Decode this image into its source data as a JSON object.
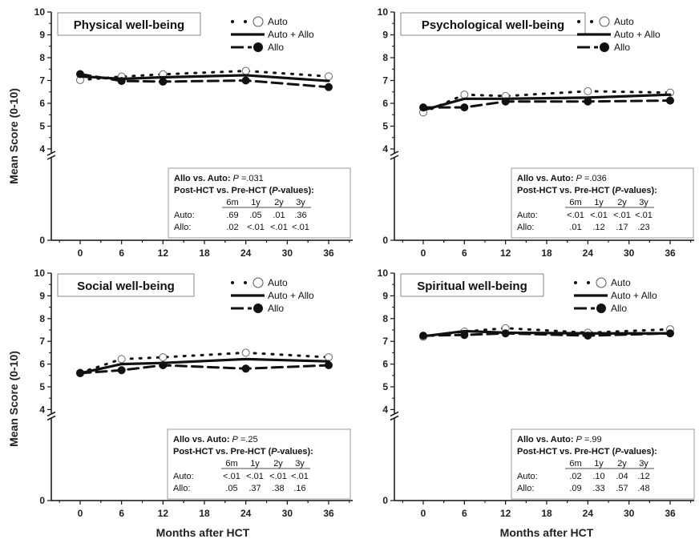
{
  "y_axis_label": "Mean Score (0-10)",
  "x_axis_label": "Months after HCT",
  "x_ticks": [
    "0",
    "6",
    "12",
    "18",
    "24",
    "30",
    "36"
  ],
  "y_ticks": [
    "0",
    "4",
    "5",
    "6",
    "7",
    "8",
    "9",
    "10"
  ],
  "legend": [
    "Auto",
    "Auto + Allo",
    "Allo"
  ],
  "colors": {
    "ink": "#111111",
    "open_marker": "#ffffff"
  },
  "chart_data": [
    {
      "type": "line",
      "title": "Physical well-being",
      "xlabel": "",
      "ylabel": "Mean Score (0-10)",
      "ylim": [
        0,
        10
      ],
      "xlim": [
        -6,
        39
      ],
      "axis_break_between": [
        0,
        4
      ],
      "series": [
        {
          "name": "Auto",
          "style": "dotted",
          "marker": "open-circle",
          "x": [
            0,
            6,
            12,
            24,
            36
          ],
          "y": [
            7.02,
            7.17,
            7.27,
            7.42,
            7.18
          ]
        },
        {
          "name": "Auto + Allo",
          "style": "solid",
          "marker": "none",
          "x": [
            0,
            6,
            12,
            24,
            36
          ],
          "y": [
            7.18,
            7.07,
            7.14,
            7.23,
            6.98
          ]
        },
        {
          "name": "Allo",
          "style": "dashed",
          "marker": "filled-circle",
          "x": [
            0,
            6,
            12,
            24,
            36
          ],
          "y": [
            7.28,
            6.98,
            6.95,
            7.0,
            6.71
          ]
        }
      ],
      "stats": {
        "comparison_label": "Allo vs. Auto:",
        "p_label": "P",
        "p_value": " =.031",
        "header": [
          "Post-HCT vs. Pre-HCT (",
          "P",
          "-values):"
        ],
        "columns": [
          "6m",
          "1y",
          "2y",
          "3y"
        ],
        "rows": [
          {
            "label": "Auto:",
            "values": [
              ".69",
              ".05",
              ".01",
              ".36"
            ]
          },
          {
            "label": "Allo:",
            "values": [
              ".02",
              "<.01",
              "<.01",
              "<.01"
            ]
          }
        ]
      }
    },
    {
      "type": "line",
      "title": "Psychological well-being",
      "xlabel": "",
      "ylabel": "",
      "ylim": [
        0,
        10
      ],
      "xlim": [
        -6,
        39
      ],
      "axis_break_between": [
        0,
        4
      ],
      "series": [
        {
          "name": "Auto",
          "style": "dotted",
          "marker": "open-circle",
          "x": [
            0,
            6,
            12,
            24,
            36
          ],
          "y": [
            5.6,
            6.38,
            6.32,
            6.53,
            6.47
          ]
        },
        {
          "name": "Auto + Allo",
          "style": "solid",
          "marker": "none",
          "x": [
            0,
            6,
            12,
            24,
            36
          ],
          "y": [
            5.7,
            6.2,
            6.2,
            6.25,
            6.38
          ]
        },
        {
          "name": "Allo",
          "style": "dashed",
          "marker": "filled-circle",
          "x": [
            0,
            6,
            12,
            24,
            36
          ],
          "y": [
            5.82,
            5.82,
            6.08,
            6.08,
            6.12
          ]
        }
      ],
      "stats": {
        "comparison_label": "Allo vs. Auto:",
        "p_label": "P",
        "p_value": " =.036",
        "header": [
          "Post-HCT vs. Pre-HCT (",
          "P",
          "-values):"
        ],
        "columns": [
          "6m",
          "1y",
          "2y",
          "3y"
        ],
        "rows": [
          {
            "label": "Auto:",
            "values": [
              "<.01",
              "<.01",
              "<.01",
              "<.01"
            ]
          },
          {
            "label": "Allo:",
            "values": [
              ".01",
              ".12",
              ".17",
              ".23"
            ]
          }
        ]
      }
    },
    {
      "type": "line",
      "title": "Social well-being",
      "xlabel": "Months after HCT",
      "ylabel": "Mean Score (0-10)",
      "ylim": [
        0,
        10
      ],
      "xlim": [
        -6,
        39
      ],
      "axis_break_between": [
        0,
        4
      ],
      "series": [
        {
          "name": "Auto",
          "style": "dotted",
          "marker": "open-circle",
          "x": [
            0,
            6,
            12,
            24,
            36
          ],
          "y": [
            5.62,
            6.22,
            6.3,
            6.5,
            6.3
          ]
        },
        {
          "name": "Auto + Allo",
          "style": "solid",
          "marker": "none",
          "x": [
            0,
            6,
            12,
            24,
            36
          ],
          "y": [
            5.6,
            6.0,
            6.05,
            6.22,
            6.12
          ]
        },
        {
          "name": "Allo",
          "style": "dashed",
          "marker": "filled-circle",
          "x": [
            0,
            6,
            12,
            24,
            36
          ],
          "y": [
            5.6,
            5.73,
            5.95,
            5.8,
            5.95
          ]
        }
      ],
      "stats": {
        "comparison_label": "Allo vs. Auto:",
        "p_label": "P",
        "p_value": " =.25",
        "header": [
          "Post-HCT vs. Pre-HCT (",
          "P",
          "-values):"
        ],
        "columns": [
          "6m",
          "1y",
          "2y",
          "3y"
        ],
        "rows": [
          {
            "label": "Auto:",
            "values": [
              "<.01",
              "<.01",
              "<.01",
              "<.01"
            ]
          },
          {
            "label": "Allo:",
            "values": [
              ".05",
              ".37",
              ".38",
              ".16"
            ]
          }
        ]
      }
    },
    {
      "type": "line",
      "title": "Spiritual well-being",
      "xlabel": "Months after HCT",
      "ylabel": "",
      "ylim": [
        0,
        10
      ],
      "xlim": [
        -6,
        39
      ],
      "axis_break_between": [
        0,
        4
      ],
      "series": [
        {
          "name": "Auto",
          "style": "dotted",
          "marker": "open-circle",
          "x": [
            0,
            6,
            12,
            24,
            36
          ],
          "y": [
            7.2,
            7.43,
            7.58,
            7.38,
            7.53
          ]
        },
        {
          "name": "Auto + Allo",
          "style": "solid",
          "marker": "none",
          "x": [
            0,
            6,
            12,
            24,
            36
          ],
          "y": [
            7.22,
            7.45,
            7.38,
            7.35,
            7.35
          ]
        },
        {
          "name": "Allo",
          "style": "dashed",
          "marker": "filled-circle",
          "x": [
            0,
            6,
            12,
            24,
            36
          ],
          "y": [
            7.25,
            7.28,
            7.35,
            7.25,
            7.35
          ]
        }
      ],
      "stats": {
        "comparison_label": "Allo vs. Auto:",
        "p_label": "P",
        "p_value": " =.99",
        "header": [
          "Post-HCT vs. Pre-HCT (",
          "P",
          "-values):"
        ],
        "columns": [
          "6m",
          "1y",
          "2y",
          "3y"
        ],
        "rows": [
          {
            "label": "Auto:",
            "values": [
              ".02",
              ".10",
              ".04",
              ".12"
            ]
          },
          {
            "label": "Allo:",
            "values": [
              ".09",
              ".33",
              ".57",
              ".48"
            ]
          }
        ]
      }
    }
  ]
}
